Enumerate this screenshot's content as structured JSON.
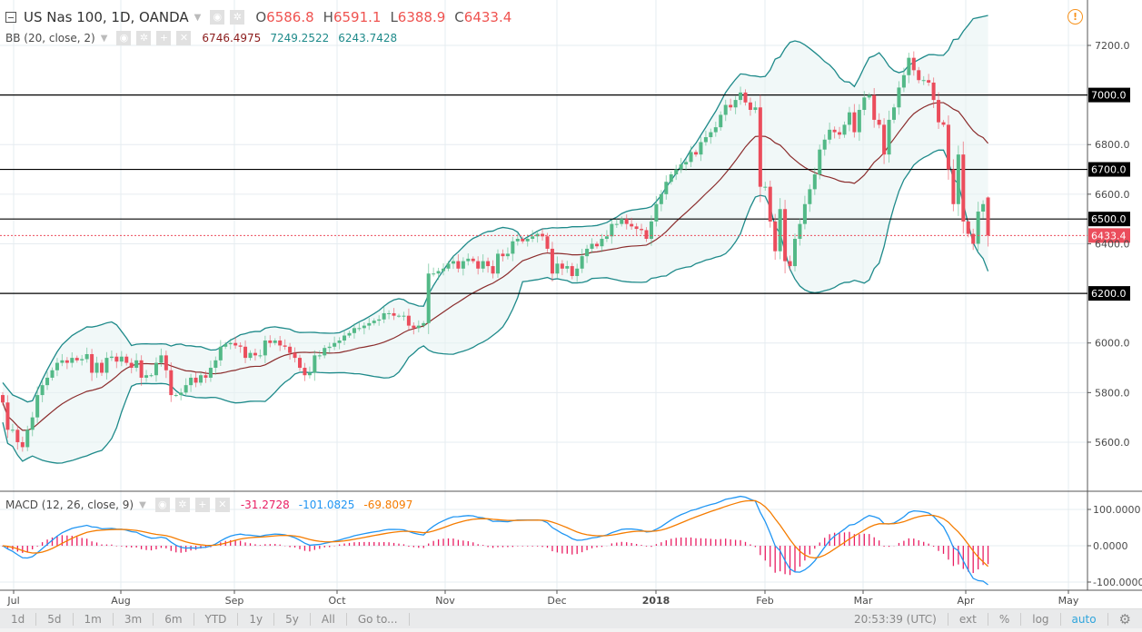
{
  "header": {
    "symbol_title": "US Nas 100, 1D, OANDA",
    "ohlc": [
      {
        "label": "O",
        "value": "6586.8"
      },
      {
        "label": "H",
        "value": "6591.1"
      },
      {
        "label": "L",
        "value": "6388.9"
      },
      {
        "label": "C",
        "value": "6433.4"
      }
    ]
  },
  "indicators": {
    "bb": {
      "label": "BB (20, close, 2)",
      "basis": "6746.4975",
      "upper": "7249.2522",
      "lower": "6243.7428"
    },
    "macd": {
      "label": "MACD (12, 26, close, 9)",
      "histogram": "-31.2728",
      "macd": "-101.0825",
      "signal": "-69.8097"
    }
  },
  "icons": {
    "warning": "warning-circle-icon",
    "settings": "gear-icon",
    "eye": "eye-icon",
    "gear": "gear-icon",
    "plus": "plus-icon",
    "close": "close-icon",
    "collapse": "collapse-square-icon"
  },
  "colors": {
    "up": "#53b987",
    "down": "#eb4d5c",
    "bb_band": "#1e8a8a",
    "bb_basis": "#8b2c2c",
    "bb_fill": "#e6f3f3",
    "macd": "#2196f3",
    "signal": "#f57c00",
    "histogram": "#e91e63",
    "last_price": "#eb4d5c",
    "level_line": "#000000"
  },
  "toolbar": {
    "ranges": [
      "1d",
      "5d",
      "1m",
      "3m",
      "6m",
      "YTD",
      "1y",
      "5y",
      "All",
      "Go to..."
    ],
    "time": "20:53:39 (UTC)",
    "options": [
      "ext",
      "%",
      "log",
      "auto"
    ]
  },
  "chart_data": [
    {
      "type": "candlestick",
      "title": "US Nas 100, 1D, OANDA",
      "x_tick_labels": [
        "Jul",
        "Aug",
        "Sep",
        "Oct",
        "Nov",
        "Dec",
        "2018",
        "Feb",
        "Mar",
        "Apr",
        "May"
      ],
      "y_tick_labels": [
        "7200.0",
        "7000.0",
        "6800.0",
        "6600.0",
        "6400.0",
        "6200.0",
        "6000.0",
        "5800.0",
        "5600.0"
      ],
      "ylim": [
        5430,
        7370
      ],
      "horizontal_levels": [
        "7000.0",
        "6700.0",
        "6500.0",
        "6200.0"
      ],
      "last_price": "6433.4",
      "last_ohlc": {
        "open": 6586.8,
        "high": 6591.1,
        "low": 6388.9,
        "close": 6433.4
      },
      "closes": [
        5760,
        5650,
        5650,
        5600,
        5580,
        5650,
        5700,
        5790,
        5830,
        5860,
        5890,
        5920,
        5930,
        5920,
        5940,
        5930,
        5935,
        5955,
        5880,
        5920,
        5880,
        5940,
        5945,
        5925,
        5945,
        5920,
        5900,
        5930,
        5860,
        5870,
        5870,
        5920,
        5950,
        5890,
        5790,
        5790,
        5800,
        5830,
        5860,
        5840,
        5870,
        5860,
        5900,
        5930,
        5985,
        5995,
        6000,
        5990,
        5985,
        5940,
        5960,
        5950,
        5950,
        6010,
        6000,
        6010,
        5990,
        5985,
        5960,
        5940,
        5900,
        5870,
        5880,
        5950,
        5950,
        5980,
        5985,
        6000,
        6010,
        6030,
        6040,
        6060,
        6060,
        6070,
        6080,
        6090,
        6095,
        6120,
        6120,
        6110,
        6110,
        6110,
        6070,
        6060,
        6070,
        6080,
        6280,
        6280,
        6290,
        6300,
        6320,
        6330,
        6300,
        6330,
        6340,
        6330,
        6300,
        6330,
        6310,
        6280,
        6360,
        6350,
        6360,
        6410,
        6420,
        6410,
        6420,
        6430,
        6440,
        6430,
        6380,
        6280,
        6320,
        6300,
        6310,
        6270,
        6300,
        6350,
        6380,
        6400,
        6390,
        6420,
        6430,
        6480,
        6480,
        6500,
        6480,
        6470,
        6460,
        6455,
        6420,
        6490,
        6560,
        6600,
        6650,
        6680,
        6700,
        6720,
        6730,
        6770,
        6760,
        6810,
        6830,
        6850,
        6870,
        6920,
        6960,
        6950,
        6980,
        7010,
        6970,
        6940,
        6950,
        6630,
        6630,
        6490,
        6370,
        6540,
        6330,
        6310,
        6420,
        6480,
        6560,
        6620,
        6680,
        6780,
        6820,
        6860,
        6850,
        6840,
        6880,
        6930,
        6850,
        6940,
        6990,
        7000,
        6900,
        6880,
        6760,
        6900,
        6950,
        7030,
        7080,
        7150,
        7100,
        7060,
        7060,
        7050,
        6980,
        6890,
        6880,
        6700,
        6560,
        6760,
        6490,
        6440,
        6400,
        6530,
        6560,
        6433.4
      ]
    },
    {
      "type": "line",
      "title": "MACD (12, 26, close, 9)",
      "y_tick_labels": [
        "100.0000",
        "0.0000",
        "-100.0000"
      ],
      "ylim": [
        -145,
        145
      ]
    }
  ]
}
